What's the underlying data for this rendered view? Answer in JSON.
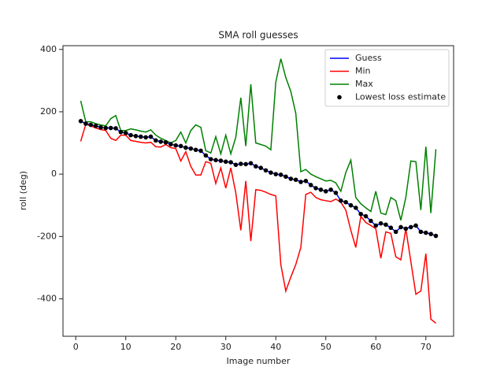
{
  "chart_data": {
    "type": "line",
    "title": "SMA roll guesses",
    "xlabel": "Image number",
    "ylabel": "roll (deg)",
    "x": [
      1,
      2,
      3,
      4,
      5,
      6,
      7,
      8,
      9,
      10,
      11,
      12,
      13,
      14,
      15,
      16,
      17,
      18,
      19,
      20,
      21,
      22,
      23,
      24,
      25,
      26,
      27,
      28,
      29,
      30,
      31,
      32,
      33,
      34,
      35,
      36,
      37,
      38,
      39,
      40,
      41,
      42,
      43,
      44,
      45,
      46,
      47,
      48,
      49,
      50,
      51,
      52,
      53,
      54,
      55,
      56,
      57,
      58,
      59,
      60,
      61,
      62,
      63,
      64,
      65,
      66,
      67,
      68,
      69,
      70,
      71,
      72
    ],
    "series": [
      {
        "name": "Guess",
        "color": "#0000ff",
        "values": [
          170,
          162,
          158,
          155,
          150,
          148,
          148,
          147,
          135,
          132,
          125,
          122,
          120,
          118,
          120,
          108,
          104,
          102,
          96,
          92,
          90,
          85,
          82,
          78,
          75,
          60,
          48,
          45,
          43,
          40,
          38,
          30,
          33,
          32,
          35,
          25,
          20,
          12,
          5,
          0,
          -2,
          -8,
          -15,
          -18,
          -25,
          -22,
          -35,
          -45,
          -50,
          -55,
          -50,
          -60,
          -85,
          -90,
          -100,
          -108,
          -128,
          -135,
          -150,
          -165,
          -158,
          -162,
          -172,
          -185,
          -170,
          -175,
          -170,
          -165,
          -185,
          -188,
          -192,
          -198
        ]
      },
      {
        "name": "Min",
        "color": "#ff0000",
        "values": [
          105,
          160,
          155,
          148,
          143,
          140,
          115,
          108,
          125,
          125,
          108,
          105,
          102,
          100,
          102,
          88,
          87,
          95,
          85,
          82,
          42,
          72,
          25,
          -3,
          -3,
          40,
          35,
          -30,
          20,
          -45,
          20,
          -60,
          -180,
          -22,
          -215,
          -50,
          -52,
          -58,
          -65,
          -70,
          -290,
          -375,
          -330,
          -290,
          -235,
          -65,
          -58,
          -75,
          -82,
          -85,
          -88,
          -80,
          -90,
          -115,
          -180,
          -235,
          -135,
          -155,
          -165,
          -175,
          -270,
          -185,
          -190,
          -265,
          -275,
          -175,
          -280,
          -385,
          -375,
          -255,
          -465,
          -478
        ]
      },
      {
        "name": "Max",
        "color": "#008000",
        "values": [
          235,
          168,
          168,
          162,
          158,
          155,
          178,
          188,
          140,
          140,
          145,
          142,
          138,
          135,
          142,
          125,
          115,
          108,
          100,
          108,
          135,
          100,
          140,
          158,
          150,
          75,
          68,
          120,
          65,
          125,
          65,
          118,
          245,
          90,
          288,
          100,
          95,
          90,
          78,
          295,
          370,
          310,
          265,
          195,
          8,
          15,
          0,
          -8,
          -15,
          -22,
          -20,
          -28,
          -55,
          5,
          45,
          -75,
          -95,
          -108,
          -120,
          -55,
          -125,
          -130,
          -75,
          -85,
          -148,
          -75,
          42,
          40,
          -115,
          88,
          -125,
          80
        ]
      }
    ],
    "scatter": {
      "name": "Lowest loss estimate",
      "color": "#000000",
      "values": [
        170,
        162,
        158,
        155,
        150,
        148,
        148,
        147,
        135,
        132,
        125,
        122,
        120,
        118,
        120,
        108,
        104,
        102,
        96,
        92,
        90,
        85,
        82,
        78,
        75,
        60,
        48,
        45,
        43,
        40,
        38,
        30,
        33,
        32,
        35,
        25,
        20,
        12,
        5,
        0,
        -2,
        -8,
        -15,
        -18,
        -25,
        -22,
        -35,
        -45,
        -50,
        -55,
        -50,
        -60,
        -85,
        -90,
        -100,
        -108,
        -128,
        -135,
        -150,
        -165,
        -158,
        -162,
        -172,
        -185,
        -170,
        -175,
        -170,
        -165,
        -185,
        -188,
        -192,
        -198
      ]
    },
    "xlim": [
      -2.55,
      75.55
    ],
    "ylim": [
      -520,
      412
    ],
    "xticks": [
      0,
      10,
      20,
      30,
      40,
      50,
      60,
      70
    ],
    "yticks": [
      -400,
      -200,
      0,
      200,
      400
    ],
    "legend": "upper right"
  }
}
